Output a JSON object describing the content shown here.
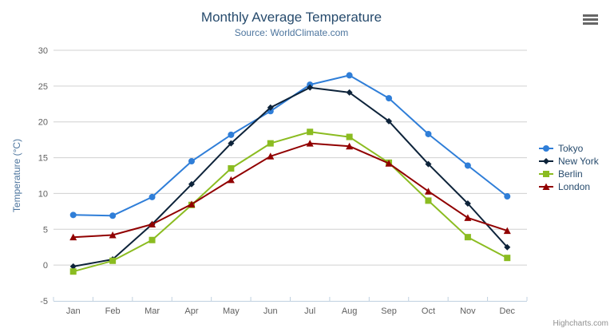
{
  "chart": {
    "credits": "Highcharts.com",
    "menu_icon": "hamburger-menu-icon"
  },
  "chart_data": {
    "type": "line",
    "title": "Monthly Average Temperature",
    "subtitle": "Source: WorldClimate.com",
    "categories": [
      "Jan",
      "Feb",
      "Mar",
      "Apr",
      "May",
      "Jun",
      "Jul",
      "Aug",
      "Sep",
      "Oct",
      "Nov",
      "Dec"
    ],
    "series": [
      {
        "name": "Tokyo",
        "color": "#2f7ed8",
        "marker": "circle",
        "values": [
          7.0,
          6.9,
          9.5,
          14.5,
          18.2,
          21.5,
          25.2,
          26.5,
          23.3,
          18.3,
          13.9,
          9.6
        ]
      },
      {
        "name": "New York",
        "color": "#0d233a",
        "marker": "diamond",
        "values": [
          -0.2,
          0.8,
          5.7,
          11.3,
          17.0,
          22.0,
          24.8,
          24.1,
          20.1,
          14.1,
          8.6,
          2.5
        ]
      },
      {
        "name": "Berlin",
        "color": "#8bbc21",
        "marker": "square",
        "values": [
          -0.9,
          0.6,
          3.5,
          8.4,
          13.5,
          17.0,
          18.6,
          17.9,
          14.3,
          9.0,
          3.9,
          1.0
        ]
      },
      {
        "name": "London",
        "color": "#910000",
        "marker": "triangle",
        "values": [
          3.9,
          4.2,
          5.7,
          8.5,
          11.9,
          15.2,
          17.0,
          16.6,
          14.2,
          10.3,
          6.6,
          4.8
        ]
      }
    ],
    "xlabel": "",
    "ylabel": "Temperature (°C)",
    "ylim": [
      -5,
      30
    ],
    "yticks": [
      30,
      25,
      20,
      15,
      10,
      5,
      0,
      -5
    ],
    "grid": true,
    "legend_position": "right",
    "colors": {
      "grid": "#d0d0d0",
      "axis_line": "#c0d0e0",
      "axis_label": "#606060",
      "title": "#274b6d",
      "subtitle": "#4d759e",
      "legend_text": "#274b6d",
      "credits": "#909090"
    }
  }
}
